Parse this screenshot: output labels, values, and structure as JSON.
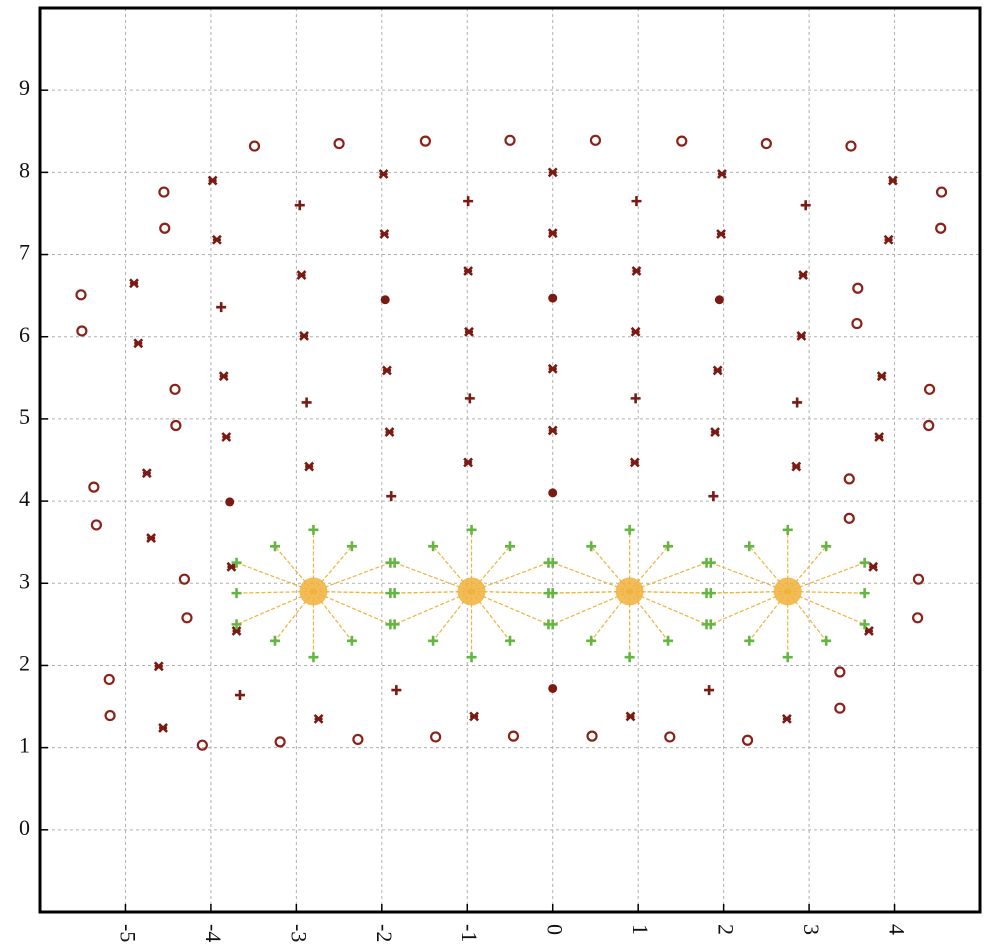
{
  "chart_data": {
    "type": "scatter",
    "xlim": [
      -6,
      5
    ],
    "ylim": [
      -1,
      10
    ],
    "xticks": [
      -5,
      -4,
      -3,
      -2,
      -1,
      0,
      1,
      2,
      3,
      4
    ],
    "yticks": [
      0,
      1,
      2,
      3,
      4,
      5,
      6,
      7,
      8,
      9
    ],
    "grid": true,
    "series": [
      {
        "marker": "circle",
        "color": "#8b2219",
        "x": [
          -3.49,
          -2.5,
          -1.49,
          -0.5,
          0.5,
          1.51,
          2.5,
          3.49,
          -4.55,
          -4.54,
          4.55,
          4.54,
          -5.52,
          -5.51,
          3.57,
          3.56,
          -4.42,
          -4.41,
          4.41,
          4.4,
          -5.37,
          -5.34,
          3.47,
          3.47,
          -4.31,
          -4.28,
          4.28,
          4.27,
          -5.19,
          -5.18,
          3.36,
          3.36,
          -4.1,
          -3.19,
          -2.28,
          -1.37,
          -0.46,
          0.46,
          1.37,
          2.28
        ],
        "values": [
          8.32,
          8.35,
          8.38,
          8.39,
          8.39,
          8.38,
          8.35,
          8.32,
          7.76,
          7.32,
          7.76,
          7.32,
          6.51,
          6.07,
          6.59,
          6.16,
          5.36,
          4.92,
          5.36,
          4.92,
          4.17,
          3.71,
          4.27,
          3.79,
          3.05,
          2.58,
          3.05,
          2.58,
          1.83,
          1.39,
          1.92,
          1.48,
          1.03,
          1.07,
          1.1,
          1.13,
          1.14,
          1.14,
          1.13,
          1.09
        ]
      },
      {
        "marker": "x",
        "color": "#7a1a12",
        "x": [
          -3.98,
          -1.98,
          0,
          1.98,
          3.98,
          -3.93,
          -1.97,
          0,
          1.97,
          3.93,
          -4.9,
          -4.85,
          -2.94,
          -2.91,
          -0.99,
          -0.98,
          0.98,
          0.97,
          2.93,
          2.91,
          -3.85,
          -3.82,
          3.85,
          3.82,
          -1.94,
          -1.91,
          0,
          0,
          1.93,
          1.9,
          -2.85,
          -0.99,
          0.96,
          2.85,
          -4.75,
          -4.7,
          -4.61,
          -4.56,
          -2.74,
          -0.92,
          0.91,
          2.74,
          -3.76,
          -3.7,
          3.75,
          3.7
        ],
        "values": [
          7.9,
          7.98,
          8.0,
          7.98,
          7.9,
          7.18,
          7.25,
          7.26,
          7.25,
          7.18,
          6.65,
          5.92,
          6.75,
          6.01,
          6.8,
          6.06,
          6.8,
          6.06,
          6.75,
          6.01,
          5.52,
          4.78,
          5.52,
          4.78,
          5.59,
          4.84,
          5.61,
          4.86,
          5.59,
          4.84,
          4.42,
          4.47,
          4.47,
          4.42,
          4.34,
          3.55,
          1.99,
          1.24,
          1.35,
          1.38,
          1.38,
          1.35,
          3.2,
          2.42,
          3.2,
          2.42
        ]
      },
      {
        "marker": "plus",
        "color": "#7a1a12",
        "x": [
          -2.96,
          -0.99,
          0.98,
          2.96,
          -3.88,
          -2.88,
          -0.97,
          0.97,
          2.86,
          -1.89,
          1.88,
          -3.66,
          -1.83,
          1.83
        ],
        "values": [
          7.6,
          7.65,
          7.65,
          7.6,
          6.36,
          5.2,
          5.25,
          5.25,
          5.2,
          4.06,
          4.06,
          1.64,
          1.7,
          1.7
        ]
      },
      {
        "marker": "dot",
        "color": "#7a1a12",
        "x": [
          -1.96,
          0,
          1.95,
          -3.78,
          0,
          0
        ],
        "values": [
          6.45,
          6.47,
          6.45,
          3.99,
          4.1,
          1.72
        ]
      },
      {
        "marker": "plus",
        "color": "#66b544",
        "x": [
          -2.8,
          -2.35,
          -1.9,
          -1.9,
          -1.9,
          -2.35,
          -2.8,
          -3.25,
          -3.7,
          -3.7,
          -3.7,
          -3.25,
          -0.95,
          -0.5,
          -0.05,
          -0.05,
          -0.05,
          -0.5,
          -0.95,
          -1.4,
          -1.85,
          -1.85,
          -1.85,
          -1.4,
          0.9,
          1.35,
          1.8,
          1.8,
          1.8,
          1.35,
          0.9,
          0.45,
          0,
          0,
          0,
          0.45,
          2.75,
          3.2,
          3.65,
          3.65,
          3.65,
          3.2,
          2.75,
          2.3,
          1.85,
          1.85,
          1.85,
          2.3
        ],
        "values": [
          3.65,
          3.45,
          3.25,
          2.88,
          2.5,
          2.3,
          2.1,
          2.3,
          2.5,
          2.88,
          3.25,
          3.45,
          3.65,
          3.45,
          3.25,
          2.88,
          2.5,
          2.3,
          2.1,
          2.3,
          2.5,
          2.88,
          3.25,
          3.45,
          3.65,
          3.45,
          3.25,
          2.88,
          2.5,
          2.3,
          2.1,
          2.3,
          2.5,
          2.88,
          3.25,
          3.45,
          3.65,
          3.45,
          3.25,
          2.88,
          2.5,
          2.3,
          2.1,
          2.3,
          2.5,
          2.88,
          3.25,
          3.45
        ]
      },
      {
        "marker": "burst",
        "color": "#f0b23c",
        "x": [
          -2.8,
          -0.95,
          0.9,
          2.75
        ],
        "values": [
          2.9,
          2.9,
          2.9,
          2.9
        ]
      }
    ]
  }
}
